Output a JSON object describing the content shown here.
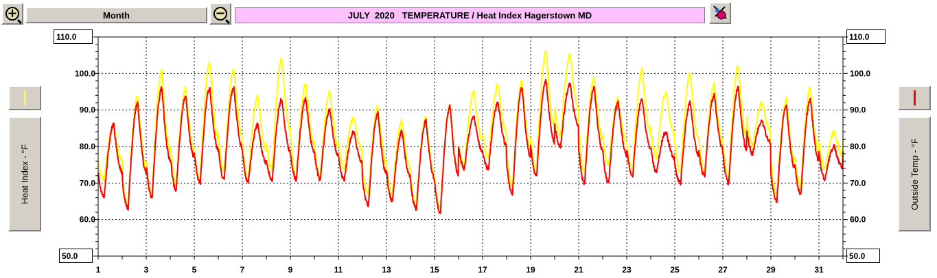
{
  "toolbar": {
    "zoom_in_glyph": "+",
    "zoom_out_glyph": "−",
    "period_label": "Month",
    "title": "JULY  2020   TEMPERATURE / Heat Index Hagerstown MD",
    "zoom_in_icon": "zoom-in-magnifier-icon",
    "zoom_out_icon": "zoom-out-magnifier-icon",
    "tool_icon": "paint-tool-icon"
  },
  "left_axis": {
    "label": "Heat Index - °F",
    "top_value": "110.0",
    "bottom_value": "50.0",
    "swatch_color": "#ffff00"
  },
  "right_axis": {
    "label": "Outside Temp - °F",
    "top_value": "110.0",
    "bottom_value": "50.0",
    "swatch_color": "#ff0000"
  },
  "chart_data": {
    "type": "line",
    "title": "JULY  2020   TEMPERATURE / Heat Index Hagerstown MD",
    "xlabel": "",
    "ylabel_left": "Heat Index - °F",
    "ylabel_right": "Outside Temp - °F",
    "xlim": [
      1,
      32
    ],
    "ylim": [
      50,
      110
    ],
    "x_ticks": [
      "1",
      "3",
      "5",
      "7",
      "9",
      "11",
      "13",
      "15",
      "17",
      "19",
      "21",
      "23",
      "25",
      "27",
      "29",
      "31"
    ],
    "y_ticks": [
      "60.0",
      "70.0",
      "80.0",
      "90.0",
      "100.0"
    ],
    "grid": true,
    "background": "#ffffff",
    "series": [
      {
        "name": "Heat Index",
        "color": "#ffff00",
        "days": [
          1,
          2,
          3,
          4,
          5,
          6,
          7,
          8,
          9,
          10,
          11,
          12,
          13,
          14,
          15,
          16,
          17,
          18,
          19,
          20,
          21,
          22,
          23,
          24,
          25,
          26,
          27,
          28,
          29,
          30,
          31
        ],
        "daily_low": [
          71,
          64,
          67,
          70,
          71,
          73,
          71,
          74,
          72,
          72,
          74,
          67,
          67,
          64,
          63,
          75,
          77,
          69,
          74,
          83,
          73,
          75,
          74,
          77,
          73,
          73,
          72,
          80,
          67,
          69,
          74
        ],
        "daily_high": [
          86,
          94,
          101,
          96,
          103,
          101,
          94,
          104,
          97,
          95,
          88,
          91,
          87,
          88,
          91,
          95,
          97,
          98,
          106,
          105,
          99,
          93,
          101,
          95,
          100,
          97,
          102,
          92,
          93,
          96,
          84
        ]
      },
      {
        "name": "Outside Temp",
        "color": "#ff0000",
        "days": [
          1,
          2,
          3,
          4,
          5,
          6,
          7,
          8,
          9,
          10,
          11,
          12,
          13,
          14,
          15,
          16,
          17,
          18,
          19,
          20,
          21,
          22,
          23,
          24,
          25,
          26,
          27,
          28,
          29,
          30,
          31
        ],
        "daily_low": [
          66,
          63,
          66,
          68,
          70,
          71,
          70,
          71,
          71,
          71,
          71,
          64,
          65,
          63,
          62,
          74,
          74,
          67,
          72,
          80,
          70,
          70,
          72,
          73,
          70,
          72,
          70,
          78,
          65,
          67,
          71
        ],
        "daily_high": [
          86,
          92,
          96,
          94,
          96,
          96,
          86,
          93,
          93,
          90,
          84,
          89,
          84,
          87,
          91,
          88,
          92,
          96,
          98,
          97,
          96,
          92,
          93,
          84,
          92,
          94,
          96,
          87,
          91,
          93,
          80
        ]
      }
    ]
  }
}
